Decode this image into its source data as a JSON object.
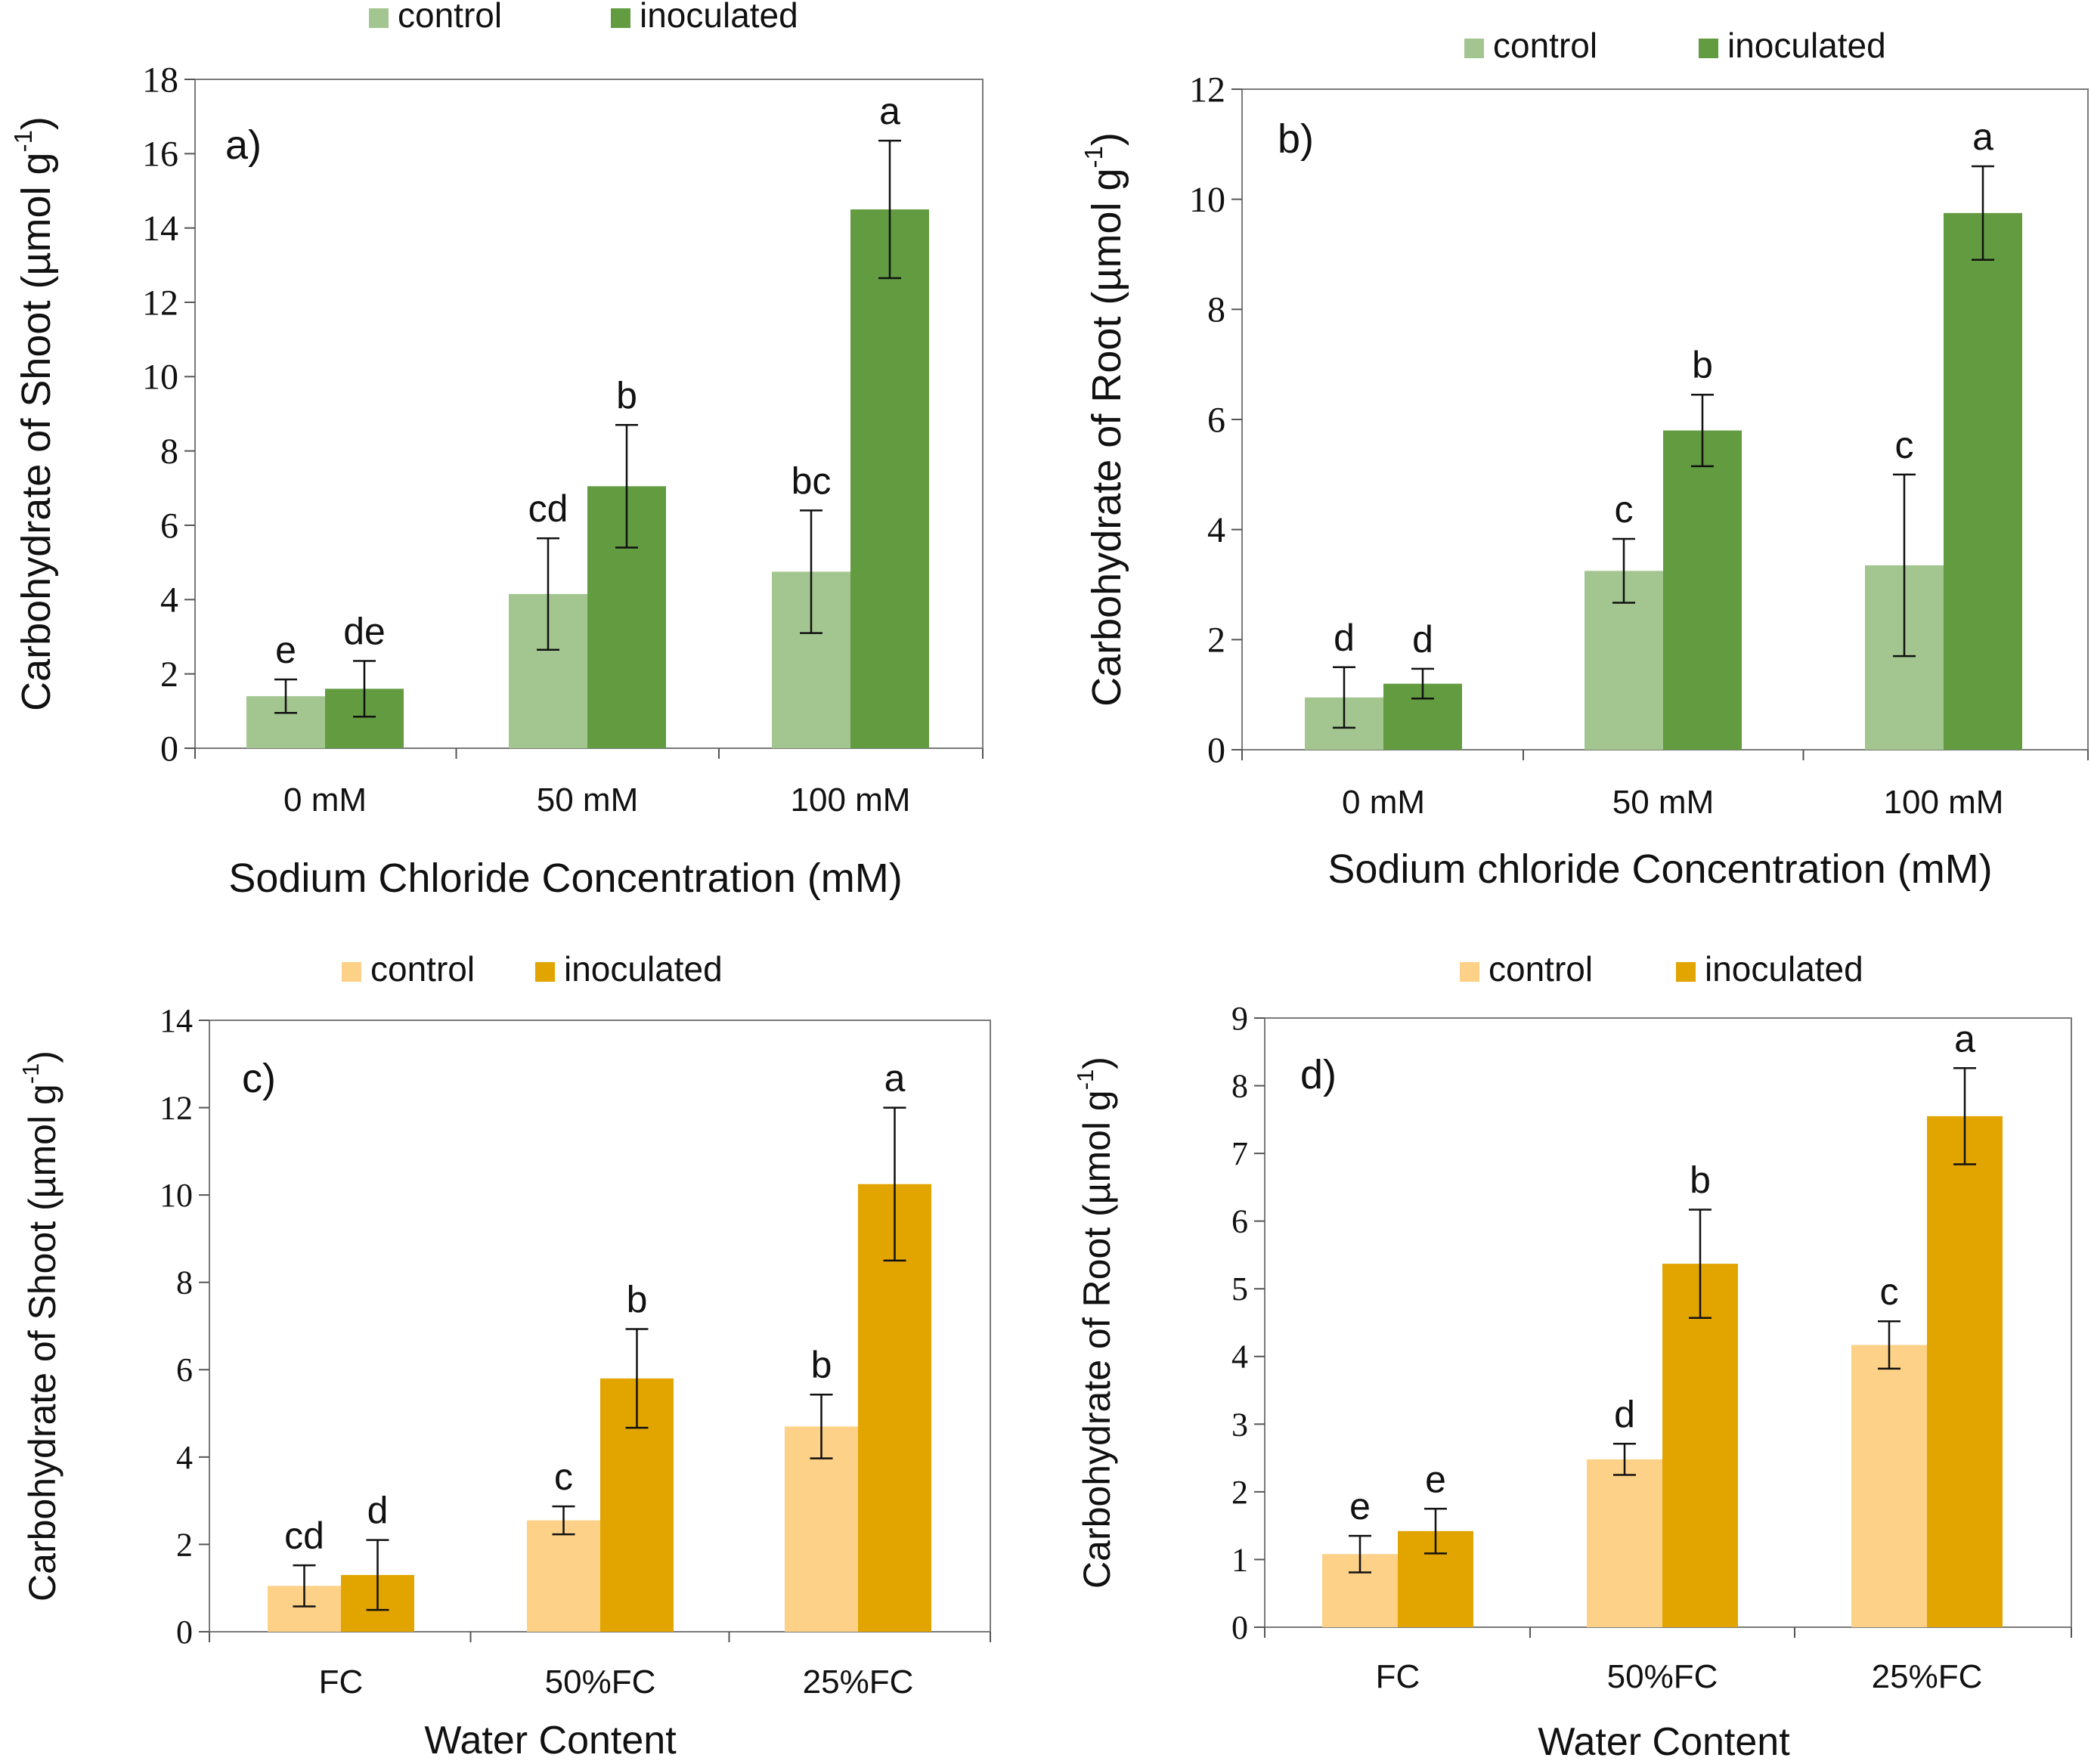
{
  "chart_data": [
    {
      "type": "bar",
      "panel_label": "a)",
      "legend": [
        "control",
        "inoculated"
      ],
      "categories": [
        "0 mM",
        "50 mM",
        "100 mM"
      ],
      "series": [
        {
          "name": "control",
          "values": [
            1.4,
            4.15,
            4.75
          ],
          "errors": [
            0.45,
            1.5,
            1.65
          ],
          "letters": [
            "e",
            "cd",
            "bc"
          ]
        },
        {
          "name": "inoculated",
          "values": [
            1.6,
            7.05,
            14.5
          ],
          "errors": [
            0.75,
            1.65,
            1.85
          ],
          "letters": [
            "de",
            "b",
            "a"
          ]
        }
      ],
      "yticks": [
        "0",
        "2",
        "4",
        "6",
        "8",
        "10",
        "12",
        "14",
        "16",
        "18"
      ],
      "ylim": [
        0,
        18
      ],
      "ylabel": "Carbohydrate of Shoot (µmol g",
      "ylabel_sup": "-1",
      "ylabel_close": ")",
      "xlabel": "Sodium Chloride Concentration (mM)",
      "colors": [
        "#a3c690",
        "#629b40"
      ]
    },
    {
      "type": "bar",
      "panel_label": "b)",
      "legend": [
        "control",
        "inoculated"
      ],
      "categories": [
        "0 mM",
        "50 mM",
        "100 mM"
      ],
      "series": [
        {
          "name": "control",
          "values": [
            0.95,
            3.25,
            3.35
          ],
          "errors": [
            0.55,
            0.58,
            1.65
          ],
          "letters": [
            "d",
            "c",
            "c"
          ]
        },
        {
          "name": "inoculated",
          "values": [
            1.2,
            5.8,
            9.75
          ],
          "errors": [
            0.27,
            0.65,
            0.85
          ],
          "letters": [
            "d",
            "b",
            "a"
          ]
        }
      ],
      "yticks": [
        "0",
        "2",
        "4",
        "6",
        "8",
        "10",
        "12"
      ],
      "ylim": [
        0,
        12
      ],
      "ylabel": "Carbohydrate of Root (µmol g",
      "ylabel_sup": "-1",
      "ylabel_close": ")",
      "xlabel": "Sodium chloride Concentration (mM)",
      "colors": [
        "#a3c690",
        "#629b40"
      ]
    },
    {
      "type": "bar",
      "panel_label": "c)",
      "legend": [
        "control",
        "inoculated"
      ],
      "categories": [
        "FC",
        "50%FC",
        "25%FC"
      ],
      "series": [
        {
          "name": "control",
          "values": [
            1.05,
            2.55,
            4.7
          ],
          "errors": [
            0.47,
            0.32,
            0.73
          ],
          "letters": [
            "cd",
            "c",
            "b"
          ]
        },
        {
          "name": "inoculated",
          "values": [
            1.3,
            5.8,
            10.25
          ],
          "errors": [
            0.8,
            1.13,
            1.75
          ],
          "letters": [
            "d",
            "b",
            "a"
          ]
        }
      ],
      "yticks": [
        "0",
        "2",
        "4",
        "6",
        "8",
        "10",
        "12",
        "14"
      ],
      "ylim": [
        0,
        14
      ],
      "ylabel": "Carbohydrate of Shoot (µmol g",
      "ylabel_sup": "-1",
      "ylabel_close": ")",
      "xlabel": "Water Content",
      "colors": [
        "#fdd187",
        "#e2a500"
      ]
    },
    {
      "type": "bar",
      "panel_label": "d)",
      "legend": [
        "control",
        "inoculated"
      ],
      "categories": [
        "FC",
        "50%FC",
        "25%FC"
      ],
      "series": [
        {
          "name": "control",
          "values": [
            1.08,
            2.48,
            4.17
          ],
          "errors": [
            0.27,
            0.23,
            0.35
          ],
          "letters": [
            "e",
            "d",
            "c"
          ]
        },
        {
          "name": "inoculated",
          "values": [
            1.42,
            5.37,
            7.55
          ],
          "errors": [
            0.33,
            0.8,
            0.71
          ],
          "letters": [
            "e",
            "b",
            "a"
          ]
        }
      ],
      "yticks": [
        "0",
        "1",
        "2",
        "3",
        "4",
        "5",
        "6",
        "7",
        "8",
        "9"
      ],
      "ylim": [
        0,
        9
      ],
      "ylabel": "Carbohydrate of Root (µmol g",
      "ylabel_sup": "-1",
      "ylabel_close": ")",
      "xlabel": "Water Content",
      "colors": [
        "#fdd187",
        "#e2a500"
      ]
    }
  ]
}
